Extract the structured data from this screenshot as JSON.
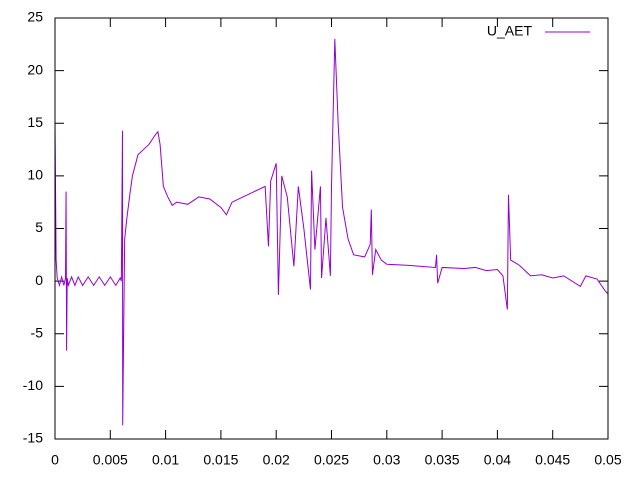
{
  "chart_data": {
    "type": "line",
    "x": [
      0,
      0.0001,
      0.0002,
      0.0004,
      0.0006,
      0.0008,
      0.00095,
      0.001,
      0.00105,
      0.0011,
      0.0012,
      0.0015,
      0.0018,
      0.0021,
      0.0025,
      0.003,
      0.0035,
      0.004,
      0.0045,
      0.005,
      0.0055,
      0.0059,
      0.006,
      0.0061,
      0.00612,
      0.0062,
      0.0063,
      0.0065,
      0.0068,
      0.007,
      0.0075,
      0.008,
      0.0085,
      0.009,
      0.0093,
      0.0095,
      0.0098,
      0.0102,
      0.0106,
      0.011,
      0.012,
      0.013,
      0.014,
      0.015,
      0.0155,
      0.016,
      0.017,
      0.018,
      0.019,
      0.0193,
      0.0195,
      0.02,
      0.0202,
      0.0205,
      0.021,
      0.0216,
      0.022,
      0.0225,
      0.0231,
      0.0232,
      0.0235,
      0.024,
      0.0241,
      0.0245,
      0.0249,
      0.025,
      0.0253,
      0.0256,
      0.026,
      0.0265,
      0.027,
      0.028,
      0.0285,
      0.0286,
      0.0287,
      0.029,
      0.0295,
      0.03,
      0.032,
      0.0344,
      0.0345,
      0.0346,
      0.035,
      0.037,
      0.038,
      0.039,
      0.04,
      0.0405,
      0.0409,
      0.041,
      0.0412,
      0.042,
      0.043,
      0.044,
      0.045,
      0.046,
      0.0475,
      0.048,
      0.049,
      0.0498,
      0.05
    ],
    "ylim": [
      -15,
      25
    ],
    "xlim": [
      0,
      0.05
    ],
    "yticks": [
      -15,
      -10,
      -5,
      0,
      5,
      10,
      15,
      20,
      25
    ],
    "xticks": [
      0,
      0.005,
      0.01,
      0.015,
      0.02,
      0.025,
      0.03,
      0.035,
      0.04,
      0.045,
      0.05
    ],
    "legend": "top-right",
    "series": [
      {
        "name": "U_AET",
        "color": "#9400d3",
        "values": [
          15,
          2,
          0.3,
          -0.4,
          0.4,
          -0.4,
          0.3,
          8.5,
          -6.6,
          0.3,
          -0.4,
          0.4,
          -0.4,
          0.4,
          -0.4,
          0.4,
          -0.4,
          0.4,
          -0.4,
          0.4,
          -0.4,
          0.3,
          0,
          14.3,
          -13.7,
          -5.6,
          4,
          6,
          8.5,
          10,
          12,
          12.5,
          13,
          13.8,
          14.2,
          13,
          9,
          8,
          7.2,
          7.5,
          7.3,
          8,
          7.8,
          7,
          6.3,
          7.5,
          8,
          8.5,
          9,
          3.3,
          9.5,
          11.2,
          -1.3,
          10,
          8,
          1.4,
          9,
          5,
          -0.8,
          10.5,
          3,
          9,
          0.3,
          6,
          0.5,
          9,
          23,
          15,
          7,
          4,
          2.5,
          2.3,
          3.5,
          6.8,
          0.6,
          3,
          2,
          1.6,
          1.5,
          1.3,
          2.5,
          -0.2,
          1.3,
          1.2,
          1.3,
          1,
          1.1,
          0.5,
          -2.7,
          8.2,
          2,
          1.5,
          0.5,
          0.6,
          0.3,
          0.5,
          -0.5,
          0.5,
          0.2,
          -1,
          -1.2
        ]
      }
    ]
  }
}
